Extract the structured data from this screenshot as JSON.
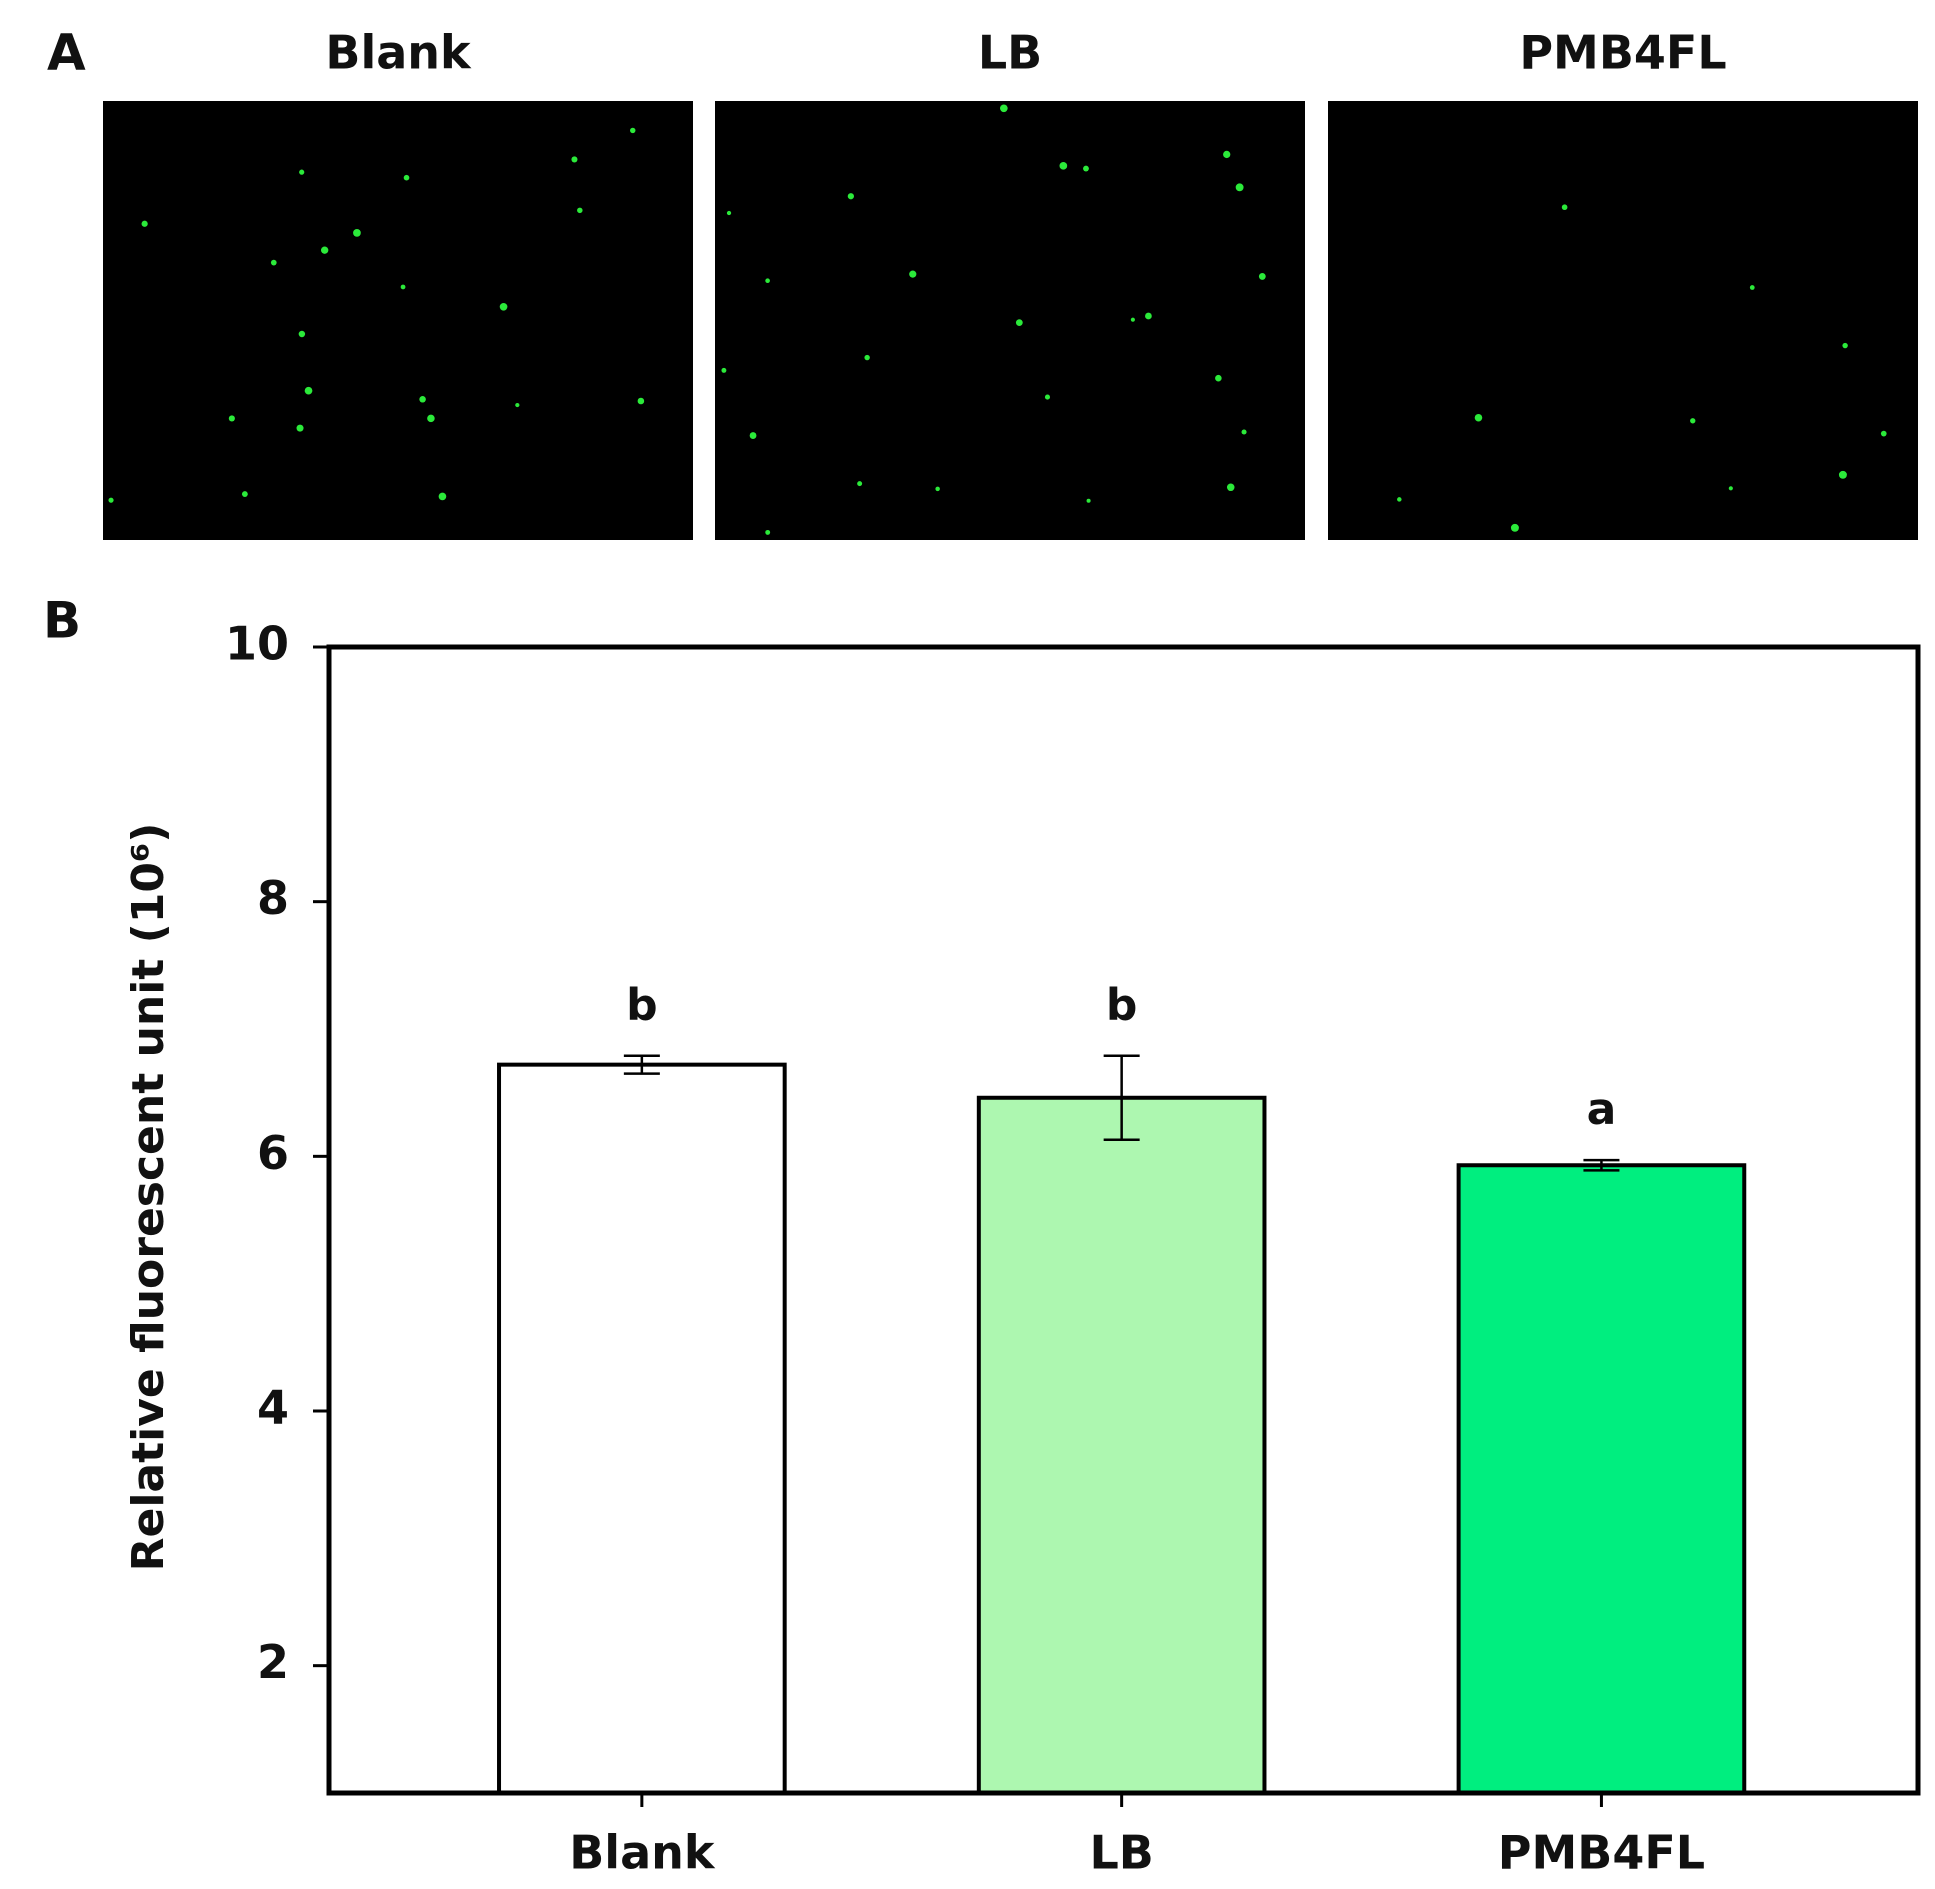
{
  "panel_labels": [
    "A",
    "B"
  ],
  "image_titles": [
    "Blank",
    "LB",
    "PMB4FL"
  ],
  "chart_data": {
    "type": "bar",
    "ylabel": "Relative fluorescent unit (10⁶)",
    "categories": [
      "Blank",
      "LB",
      "PMB4FL"
    ],
    "values": [
      6.72,
      6.46,
      5.93
    ],
    "errors": [
      0.07,
      0.33,
      0.04
    ],
    "annotations": [
      "b",
      "b",
      "a"
    ],
    "colors": [
      "#ffffff",
      "#adf7b0",
      "#00ee7f"
    ],
    "ylim": [
      1,
      10
    ],
    "yticks": [
      2,
      4,
      6,
      8,
      10
    ]
  }
}
